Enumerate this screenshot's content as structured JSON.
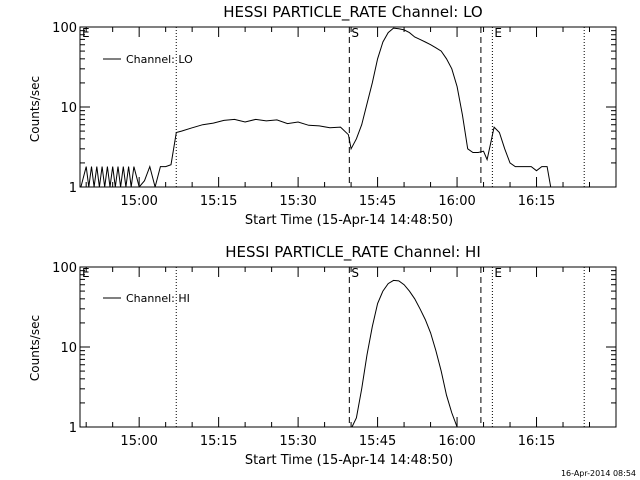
{
  "footer": {
    "timestamp": "16-Apr-2014 08:54"
  },
  "chart_data": [
    {
      "type": "line",
      "title": "HESSI PARTICLE_RATE Channel: LO",
      "xlabel": "Start Time (15-Apr-14 14:48:50)",
      "ylabel": "Counts/sec",
      "yscale": "log",
      "ylim": [
        1,
        100
      ],
      "yticks": [
        {
          "value": 1,
          "label": "1"
        },
        {
          "value": 10,
          "label": "10"
        },
        {
          "value": 100,
          "label": "100"
        }
      ],
      "xlim": [
        "14:48:50",
        "16:30:00"
      ],
      "xticks": [
        "15:00",
        "15:15",
        "15:30",
        "15:45",
        "16:00",
        "16:15"
      ],
      "legend": "Channel: LO",
      "legend_placement": "top-left",
      "markers": [
        {
          "time": "14:48:50",
          "label": "E",
          "style": "none"
        },
        {
          "time": "15:07:00",
          "label": "",
          "style": "dotted"
        },
        {
          "time": "15:39:40",
          "label": "S",
          "style": "dashed"
        },
        {
          "time": "16:04:30",
          "label": "",
          "style": "dashed"
        },
        {
          "time": "16:06:40",
          "label": "E",
          "style": "dotted"
        },
        {
          "time": "16:24:00",
          "label": "",
          "style": "dotted"
        }
      ],
      "x": [
        "14:49:00",
        "14:50:00",
        "14:50:30",
        "14:51:00",
        "14:51:30",
        "14:52:00",
        "14:52:30",
        "14:53:00",
        "14:53:30",
        "14:54:00",
        "14:54:30",
        "14:55:00",
        "14:55:30",
        "14:56:00",
        "14:56:30",
        "14:57:00",
        "14:57:30",
        "14:58:00",
        "14:58:30",
        "14:59:00",
        "15:00:00",
        "15:01:00",
        "15:02:00",
        "15:03:00",
        "15:04:00",
        "15:05:00",
        "15:06:00",
        "15:07:00",
        "15:08:00",
        "15:10:00",
        "15:12:00",
        "15:14:00",
        "15:16:00",
        "15:18:00",
        "15:20:00",
        "15:22:00",
        "15:24:00",
        "15:26:00",
        "15:28:00",
        "15:30:00",
        "15:32:00",
        "15:34:00",
        "15:36:00",
        "15:38:00",
        "15:39:30",
        "15:40:00",
        "15:41:00",
        "15:42:00",
        "15:43:00",
        "15:44:00",
        "15:45:00",
        "15:46:00",
        "15:47:00",
        "15:48:00",
        "15:49:00",
        "15:50:00",
        "15:51:00",
        "15:52:00",
        "15:53:00",
        "15:54:00",
        "15:55:00",
        "15:56:00",
        "15:57:00",
        "15:58:00",
        "15:59:00",
        "16:00:00",
        "16:01:00",
        "16:02:00",
        "16:03:00",
        "16:04:00",
        "16:05:00",
        "16:05:40",
        "16:06:20",
        "16:07:00",
        "16:08:00",
        "16:09:00",
        "16:10:00",
        "16:11:00",
        "16:12:00",
        "16:13:00",
        "16:14:00",
        "16:15:00",
        "16:16:00",
        "16:17:00",
        "16:17:40",
        "16:19:00",
        "16:20:00"
      ],
      "y": [
        1.0,
        1.8,
        1.0,
        1.8,
        1.0,
        1.8,
        1.0,
        1.8,
        1.0,
        1.8,
        1.0,
        1.8,
        1.0,
        1.8,
        1.0,
        1.8,
        1.0,
        1.8,
        1.0,
        1.8,
        1.0,
        1.2,
        1.8,
        1.0,
        1.8,
        1.8,
        1.9,
        4.8,
        5.0,
        5.5,
        6.0,
        6.3,
        6.8,
        7.0,
        6.5,
        7.0,
        6.7,
        6.9,
        6.2,
        6.5,
        5.9,
        5.8,
        5.5,
        5.6,
        4.5,
        3.0,
        4.0,
        6.0,
        11.0,
        20.0,
        40.0,
        65.0,
        85.0,
        97.0,
        95.0,
        92.0,
        85.0,
        75.0,
        70.0,
        65.0,
        60.0,
        55.0,
        50.0,
        40.0,
        30.0,
        18.0,
        8.0,
        3.0,
        2.7,
        2.7,
        2.8,
        2.2,
        3.5,
        5.6,
        4.8,
        3.0,
        2.0,
        1.8,
        1.8,
        1.8,
        1.8,
        1.6,
        1.8,
        1.8,
        1.0,
        1.0,
        1.0
      ]
    },
    {
      "type": "line",
      "title": "HESSI PARTICLE_RATE Channel: HI",
      "xlabel": "Start Time (15-Apr-14 14:48:50)",
      "ylabel": "Counts/sec",
      "yscale": "log",
      "ylim": [
        1,
        100
      ],
      "yticks": [
        {
          "value": 1,
          "label": "1"
        },
        {
          "value": 10,
          "label": "10"
        },
        {
          "value": 100,
          "label": "100"
        }
      ],
      "xlim": [
        "14:48:50",
        "16:30:00"
      ],
      "xticks": [
        "15:00",
        "15:15",
        "15:30",
        "15:45",
        "16:00",
        "16:15"
      ],
      "legend": "Channel: HI",
      "legend_placement": "top-left",
      "markers": [
        {
          "time": "14:48:50",
          "label": "E",
          "style": "none"
        },
        {
          "time": "15:07:00",
          "label": "",
          "style": "dotted"
        },
        {
          "time": "15:39:40",
          "label": "S",
          "style": "dashed"
        },
        {
          "time": "16:04:30",
          "label": "",
          "style": "dashed"
        },
        {
          "time": "16:06:40",
          "label": "E",
          "style": "dotted"
        },
        {
          "time": "16:24:00",
          "label": "",
          "style": "dotted"
        }
      ],
      "x": [
        "15:40:10",
        "15:41:00",
        "15:42:00",
        "15:43:00",
        "15:44:00",
        "15:45:00",
        "15:46:00",
        "15:47:00",
        "15:48:00",
        "15:49:00",
        "15:50:00",
        "15:51:00",
        "15:52:00",
        "15:53:00",
        "15:54:00",
        "15:55:00",
        "15:56:00",
        "15:57:00",
        "15:58:00",
        "15:59:00",
        "16:00:00"
      ],
      "y": [
        1.0,
        1.3,
        3.0,
        8.0,
        18.0,
        35.0,
        50.0,
        62.0,
        68.0,
        67.0,
        60.0,
        50.0,
        40.0,
        30.0,
        22.0,
        15.0,
        9.0,
        5.0,
        2.5,
        1.5,
        1.0
      ]
    }
  ]
}
